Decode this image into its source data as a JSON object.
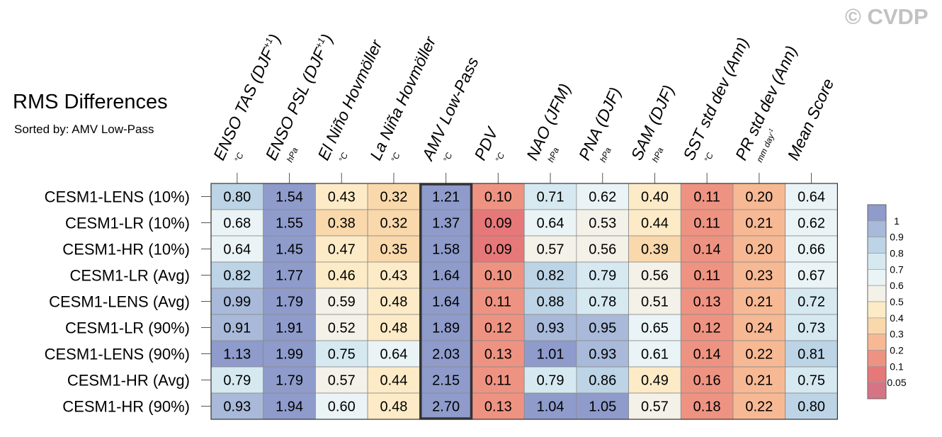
{
  "title": "RMS Differences",
  "subtitle": "Sorted by: AMV Low-Pass",
  "watermark": "© CVDP",
  "chart_data": {
    "type": "heatmap",
    "columns": [
      {
        "label": "ENSO TAS (DJF",
        "sup": "+1",
        "close": ")",
        "unit": "°C"
      },
      {
        "label": "ENSO PSL (DJF",
        "sup": "+1",
        "close": ")",
        "unit": "hPa"
      },
      {
        "label": "El Niño Hovmöller",
        "sup": "",
        "close": "",
        "unit": "°C"
      },
      {
        "label": "La Niña Hovmöller",
        "sup": "",
        "close": "",
        "unit": "°C"
      },
      {
        "label": "AMV Low-Pass",
        "sup": "",
        "close": "",
        "unit": "°C"
      },
      {
        "label": "PDV",
        "sup": "",
        "close": "",
        "unit": "°C"
      },
      {
        "label": "NAO (JFM)",
        "sup": "",
        "close": "",
        "unit": "hPa"
      },
      {
        "label": "PNA (DJF)",
        "sup": "",
        "close": "",
        "unit": "hPa"
      },
      {
        "label": "SAM (DJF)",
        "sup": "",
        "close": "",
        "unit": "hPa"
      },
      {
        "label": "SST std dev (Ann)",
        "sup": "",
        "close": "",
        "unit": "°C"
      },
      {
        "label": "PR std dev (Ann)",
        "sup": "",
        "close": "",
        "unit": "mm day",
        "unit_sup": "-1"
      },
      {
        "label": "Mean Score",
        "sup": "",
        "close": "",
        "unit": ""
      }
    ],
    "rows": [
      {
        "name": "CESM1-LENS (10%)",
        "values": [
          "0.80",
          "1.54",
          "0.43",
          "0.32",
          "1.21",
          "0.10",
          "0.71",
          "0.62",
          "0.40",
          "0.11",
          "0.20",
          "0.64"
        ]
      },
      {
        "name": "CESM1-LR (10%)",
        "values": [
          "0.68",
          "1.55",
          "0.38",
          "0.32",
          "1.37",
          "0.09",
          "0.64",
          "0.53",
          "0.44",
          "0.11",
          "0.21",
          "0.62"
        ]
      },
      {
        "name": "CESM1-HR (10%)",
        "values": [
          "0.64",
          "1.45",
          "0.47",
          "0.35",
          "1.58",
          "0.09",
          "0.57",
          "0.56",
          "0.39",
          "0.14",
          "0.20",
          "0.66"
        ]
      },
      {
        "name": "CESM1-LR (Avg)",
        "values": [
          "0.82",
          "1.77",
          "0.46",
          "0.43",
          "1.64",
          "0.10",
          "0.82",
          "0.79",
          "0.56",
          "0.11",
          "0.23",
          "0.67"
        ]
      },
      {
        "name": "CESM1-LENS (Avg)",
        "values": [
          "0.99",
          "1.79",
          "0.59",
          "0.48",
          "1.64",
          "0.11",
          "0.88",
          "0.78",
          "0.51",
          "0.13",
          "0.21",
          "0.72"
        ]
      },
      {
        "name": "CESM1-LR (90%)",
        "values": [
          "0.91",
          "1.91",
          "0.52",
          "0.48",
          "1.89",
          "0.12",
          "0.93",
          "0.95",
          "0.65",
          "0.12",
          "0.24",
          "0.73"
        ]
      },
      {
        "name": "CESM1-LENS (90%)",
        "values": [
          "1.13",
          "1.99",
          "0.75",
          "0.64",
          "2.03",
          "0.13",
          "1.01",
          "0.93",
          "0.61",
          "0.14",
          "0.22",
          "0.81"
        ]
      },
      {
        "name": "CESM1-HR (Avg)",
        "values": [
          "0.79",
          "1.79",
          "0.57",
          "0.44",
          "2.15",
          "0.11",
          "0.79",
          "0.86",
          "0.49",
          "0.16",
          "0.21",
          "0.75"
        ]
      },
      {
        "name": "CESM1-HR (90%)",
        "values": [
          "0.93",
          "1.94",
          "0.60",
          "0.48",
          "2.70",
          "0.13",
          "1.04",
          "1.05",
          "0.57",
          "0.18",
          "0.22",
          "0.80"
        ]
      }
    ],
    "highlighted_column": "AMV Low-Pass",
    "colorbar": {
      "levels": [
        "1",
        "0.9",
        "0.8",
        "0.7",
        "0.6",
        "0.5",
        "0.4",
        "0.3",
        "0.2",
        "0.1",
        "0.05"
      ],
      "colors": [
        "#8E9BCB",
        "#A8B9D9",
        "#BCD4E6",
        "#D6E9F1",
        "#EAF3F5",
        "#F3F1E8",
        "#FCEBC6",
        "#F9D8AB",
        "#F6B994",
        "#EE9382",
        "#E67879",
        "#D57485"
      ]
    }
  }
}
